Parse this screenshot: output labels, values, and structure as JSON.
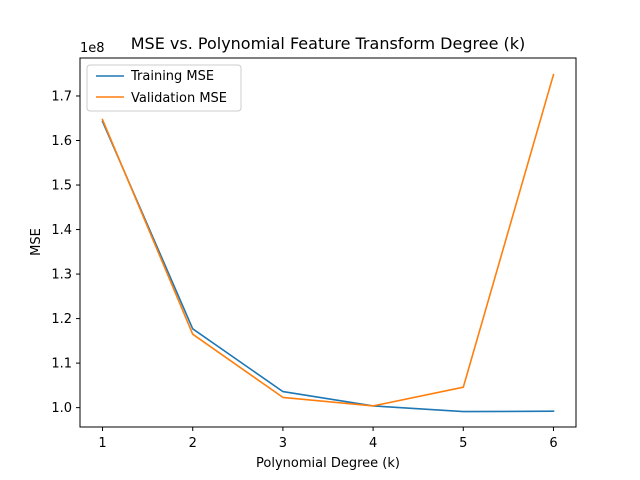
{
  "chart_data": {
    "type": "line",
    "title": "MSE vs. Polynomial Feature Transform Degree (k)",
    "xlabel": "Polynomial Degree (k)",
    "ylabel": "MSE",
    "y_offset_label": "1e8",
    "x": [
      1,
      2,
      3,
      4,
      5,
      6
    ],
    "xlim": [
      0.75,
      6.25
    ],
    "ylim": [
      0.9565,
      1.7853
    ],
    "x_ticks": [
      "1",
      "2",
      "3",
      "4",
      "5",
      "6"
    ],
    "y_ticks": [
      1.0,
      1.1,
      1.2,
      1.3,
      1.4,
      1.5,
      1.6,
      1.7
    ],
    "y_tick_labels": [
      "1.0",
      "1.1",
      "1.2",
      "1.3",
      "1.4",
      "1.5",
      "1.6",
      "1.7"
    ],
    "grid": false,
    "legend_position": "top-left",
    "series": [
      {
        "name": "Training MSE",
        "color": "#1f77b4",
        "values": [
          1.643,
          1.177,
          1.036,
          1.004,
          0.991,
          0.992
        ]
      },
      {
        "name": "Validation MSE",
        "color": "#ff7f0e",
        "values": [
          1.647,
          1.165,
          1.023,
          1.004,
          1.046,
          1.748
        ]
      }
    ]
  }
}
